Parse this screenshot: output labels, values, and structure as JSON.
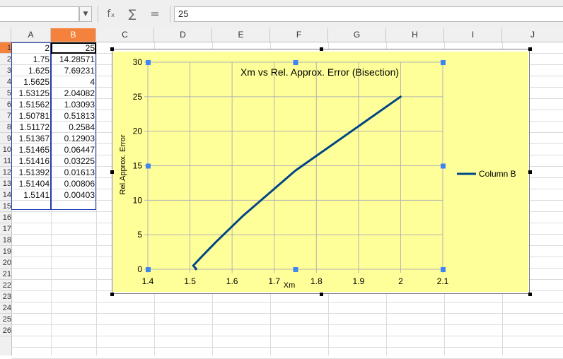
{
  "formula_bar": {
    "name_box": "",
    "fx_icon": "fₓ",
    "sum_icon": "∑",
    "equals_icon": "=",
    "formula": "25"
  },
  "columns": [
    "A",
    "B",
    "C",
    "D",
    "E",
    "F",
    "G",
    "H",
    "I",
    "J"
  ],
  "selected_column": "B",
  "row_headers": [
    "1",
    "2",
    "3",
    "4",
    "5",
    "6",
    "7",
    "8",
    "9",
    "10",
    "11",
    "12",
    "13",
    "14",
    "15",
    "16",
    "17",
    "18",
    "19",
    "20",
    "21",
    "22",
    "23",
    "24",
    "25",
    "26"
  ],
  "cells": {
    "A": [
      "2",
      "1.75",
      "1.625",
      "1.5625",
      "1.53125",
      "1.51562",
      "1.50781",
      "1.51172",
      "1.51367",
      "1.51465",
      "1.51416",
      "1.51392",
      "1.51404",
      "1.5141"
    ],
    "B": [
      "25",
      "14.28571",
      "7.69231",
      "4",
      "2.04082",
      "1.03093",
      "0.51813",
      "0.2584",
      "0.12903",
      "0.06447",
      "0.03225",
      "0.01613",
      "0.00806",
      "0.00403"
    ]
  },
  "colors": {
    "plot_bg": "#ffff99",
    "series": "#004586",
    "selection": "#1f3cae",
    "col_highlight": "#f5823c",
    "handle": "#3d86f2"
  },
  "chart_data": {
    "type": "line",
    "title": "Xm vs Rel. Approx. Error (Bisection)",
    "xlabel": "Xm",
    "ylabel": "Rel.Approx. Error",
    "xlim": [
      1.4,
      2.1
    ],
    "ylim": [
      0,
      30
    ],
    "xticks": [
      "1.4",
      "1.5",
      "1.6",
      "1.7",
      "1.8",
      "1.9",
      "2",
      "2.1"
    ],
    "yticks": [
      "0",
      "5",
      "10",
      "15",
      "20",
      "25",
      "30"
    ],
    "legend_position": "right",
    "grid": true,
    "series": [
      {
        "name": "Column B",
        "x": [
          2,
          1.75,
          1.625,
          1.5625,
          1.53125,
          1.51562,
          1.50781,
          1.51172,
          1.51367,
          1.51465,
          1.51416,
          1.51392,
          1.51404,
          1.5141
        ],
        "y": [
          25,
          14.28571,
          7.69231,
          4,
          2.04082,
          1.03093,
          0.51813,
          0.2584,
          0.12903,
          0.06447,
          0.03225,
          0.01613,
          0.00806,
          0.00403
        ]
      }
    ]
  }
}
